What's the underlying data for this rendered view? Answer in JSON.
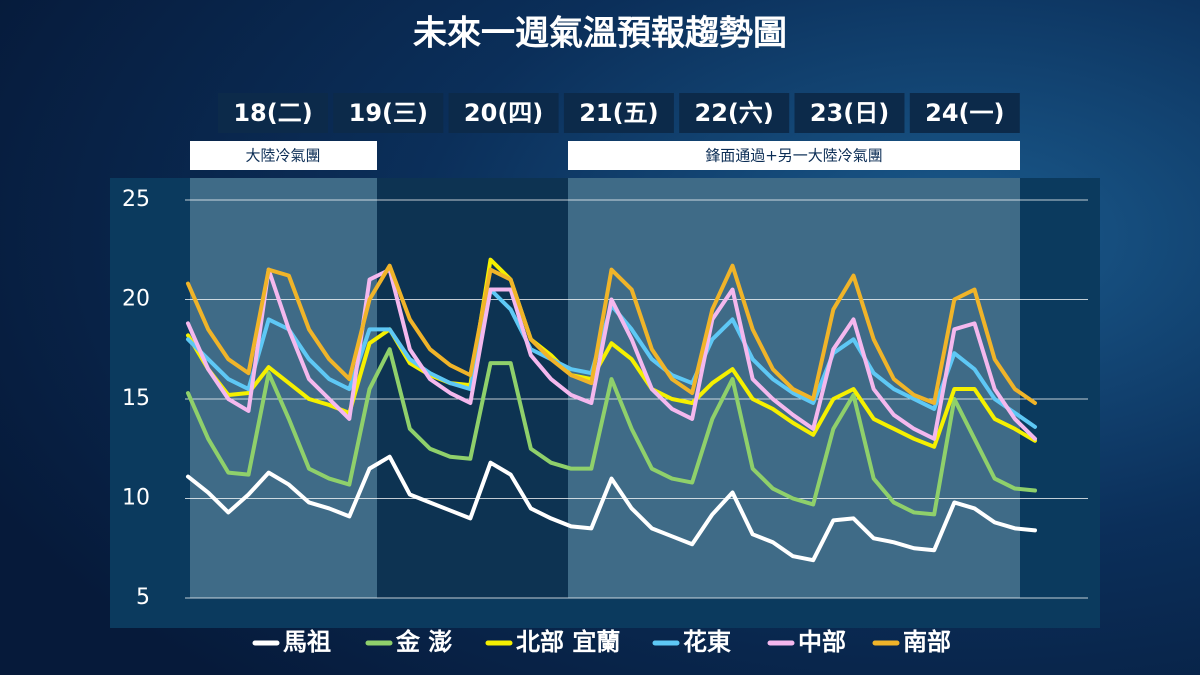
{
  "chart_data": {
    "type": "line",
    "title": "未來一週氣溫預報趨勢圖",
    "days": [
      "18(二)",
      "19(三)",
      "20(四)",
      "21(五)",
      "22(六)",
      "23(日)",
      "24(一)"
    ],
    "annotations": [
      "大陸冷氣團",
      "鋒面通過+另一大陸冷氣團"
    ],
    "ylim": [
      5,
      25
    ],
    "yticks": [
      5,
      10,
      15,
      20,
      25
    ],
    "grid": true,
    "series": [
      {
        "name": "馬祖",
        "color": "#ffffff",
        "values": [
          11.1,
          10.3,
          9.3,
          10.2,
          11.3,
          10.7,
          9.8,
          9.5,
          9.1,
          11.5,
          12.1,
          10.2,
          9.8,
          9.4,
          9.0,
          11.8,
          11.2,
          9.5,
          9.0,
          8.6,
          8.5,
          11.0,
          9.5,
          8.5,
          8.1,
          7.7,
          9.2,
          10.3,
          8.2,
          7.8,
          7.1,
          6.9,
          8.9,
          9.0,
          8.0,
          7.8,
          7.5,
          7.4,
          9.8,
          9.5,
          8.8,
          8.5,
          8.4
        ]
      },
      {
        "name": "金 澎",
        "color": "#8fd06b",
        "values": [
          15.3,
          13.0,
          11.3,
          11.2,
          16.3,
          14.0,
          11.5,
          11.0,
          10.7,
          15.5,
          17.5,
          13.5,
          12.5,
          12.1,
          12.0,
          16.8,
          16.8,
          12.5,
          11.8,
          11.5,
          11.5,
          16.0,
          13.5,
          11.5,
          11.0,
          10.8,
          14.0,
          16.0,
          11.5,
          10.5,
          10.0,
          9.7,
          13.5,
          15.2,
          11.0,
          9.8,
          9.3,
          9.2,
          15.0,
          13.0,
          11.0,
          10.5,
          10.4
        ]
      },
      {
        "name": "北部 宜蘭",
        "color": "#f5f000",
        "values": [
          18.2,
          16.5,
          15.2,
          15.3,
          16.6,
          15.8,
          15.0,
          14.7,
          14.3,
          17.8,
          18.5,
          16.8,
          16.2,
          15.8,
          15.7,
          22.0,
          21.0,
          18.0,
          17.2,
          16.2,
          16.0,
          17.8,
          17.0,
          15.5,
          15.0,
          14.8,
          15.8,
          16.5,
          15.0,
          14.5,
          13.8,
          13.2,
          15.0,
          15.5,
          14.0,
          13.5,
          13.0,
          12.6,
          15.5,
          15.5,
          14.0,
          13.5,
          12.9
        ]
      },
      {
        "name": "花東",
        "color": "#5ec8f5",
        "values": [
          18.0,
          17.0,
          16.0,
          15.5,
          19.0,
          18.5,
          17.0,
          16.0,
          15.5,
          18.5,
          18.5,
          17.0,
          16.3,
          15.8,
          15.5,
          20.5,
          19.5,
          17.5,
          17.0,
          16.5,
          16.3,
          19.7,
          18.5,
          17.0,
          16.2,
          15.8,
          18.0,
          19.0,
          17.0,
          16.0,
          15.3,
          14.8,
          17.3,
          18.0,
          16.3,
          15.5,
          15.0,
          14.5,
          17.3,
          16.5,
          15.0,
          14.3,
          13.6
        ]
      },
      {
        "name": "中部",
        "color": "#f4b8ee",
        "values": [
          18.8,
          16.5,
          15.0,
          14.4,
          21.5,
          18.5,
          16.0,
          15.0,
          14.0,
          21.0,
          21.5,
          17.5,
          16.0,
          15.3,
          14.8,
          20.5,
          20.5,
          17.2,
          16.0,
          15.2,
          14.8,
          20.0,
          18.0,
          15.5,
          14.5,
          14.0,
          19.0,
          20.5,
          16.0,
          15.0,
          14.2,
          13.5,
          17.5,
          19.0,
          15.5,
          14.2,
          13.5,
          13.0,
          18.5,
          18.8,
          15.5,
          14.0,
          13.0
        ]
      },
      {
        "name": "南部",
        "color": "#f0b429",
        "values": [
          20.8,
          18.5,
          17.0,
          16.3,
          21.5,
          21.2,
          18.5,
          17.0,
          16.0,
          20.0,
          21.7,
          19.0,
          17.5,
          16.7,
          16.2,
          21.5,
          21.0,
          18.0,
          17.0,
          16.2,
          15.8,
          21.5,
          20.5,
          17.5,
          16.0,
          15.3,
          19.5,
          21.7,
          18.5,
          16.5,
          15.5,
          15.0,
          19.5,
          21.2,
          18.0,
          16.0,
          15.2,
          14.8,
          20.0,
          20.5,
          17.0,
          15.5,
          14.8
        ]
      }
    ]
  }
}
